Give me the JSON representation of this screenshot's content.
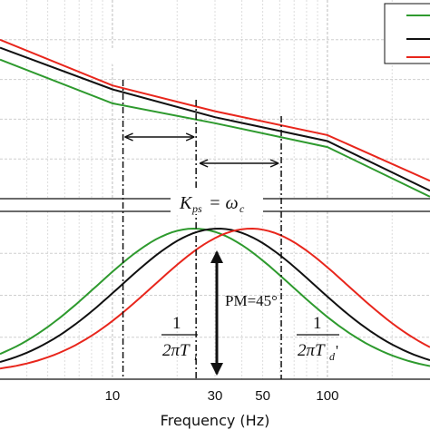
{
  "chart_data": [
    {
      "type": "line",
      "panel": "magnitude",
      "xscale": "log",
      "xlim": [
        3,
        300
      ],
      "grid": true,
      "legend_position": "top-right",
      "series": [
        {
          "color": "#2e9a2e",
          "x": [
            3,
            10,
            30,
            100,
            300
          ],
          "y": [
            0.7,
            0.48,
            0.38,
            0.26,
            0.01
          ]
        },
        {
          "color": "#111111",
          "x": [
            3,
            10,
            30,
            100,
            300
          ],
          "y": [
            0.76,
            0.55,
            0.41,
            0.29,
            0.04
          ]
        },
        {
          "color": "#e8261c",
          "x": [
            3,
            10,
            30,
            100,
            300
          ],
          "y": [
            0.8,
            0.57,
            0.44,
            0.32,
            0.09
          ]
        }
      ],
      "annotations": [
        {
          "text": "K",
          "sub": "ps",
          "eq": "= ω",
          "sub2": "c"
        }
      ]
    },
    {
      "type": "line",
      "panel": "phase",
      "xscale": "log",
      "xlim": [
        3,
        300
      ],
      "xlabel": "Frequency  (Hz)",
      "xticks": [
        10,
        30,
        50,
        100
      ],
      "xtick_labels": [
        "10",
        "30",
        "50",
        "100"
      ],
      "grid": true,
      "series": [
        {
          "color": "#2e9a2e",
          "peak_x": 24,
          "x": [
            3,
            10,
            24,
            60,
            300
          ],
          "y": [
            0.12,
            0.7,
            1.0,
            0.64,
            0.02
          ]
        },
        {
          "color": "#111111",
          "peak_x": 31,
          "x": [
            3,
            10,
            31,
            60,
            300
          ],
          "y": [
            0.06,
            0.54,
            1.0,
            0.82,
            0.04
          ]
        },
        {
          "color": "#e8261c",
          "peak_x": 44,
          "x": [
            3,
            10,
            44,
            60,
            300
          ],
          "y": [
            0.02,
            0.38,
            1.0,
            0.93,
            0.06
          ]
        }
      ],
      "annotations": [
        {
          "text": "PM=45°"
        },
        {
          "numerator": "1",
          "denominator": "2πT",
          "sub": "i"
        },
        {
          "numerator": "1",
          "denominator": "2πT",
          "sub": "d",
          "prime": "'"
        }
      ]
    }
  ]
}
